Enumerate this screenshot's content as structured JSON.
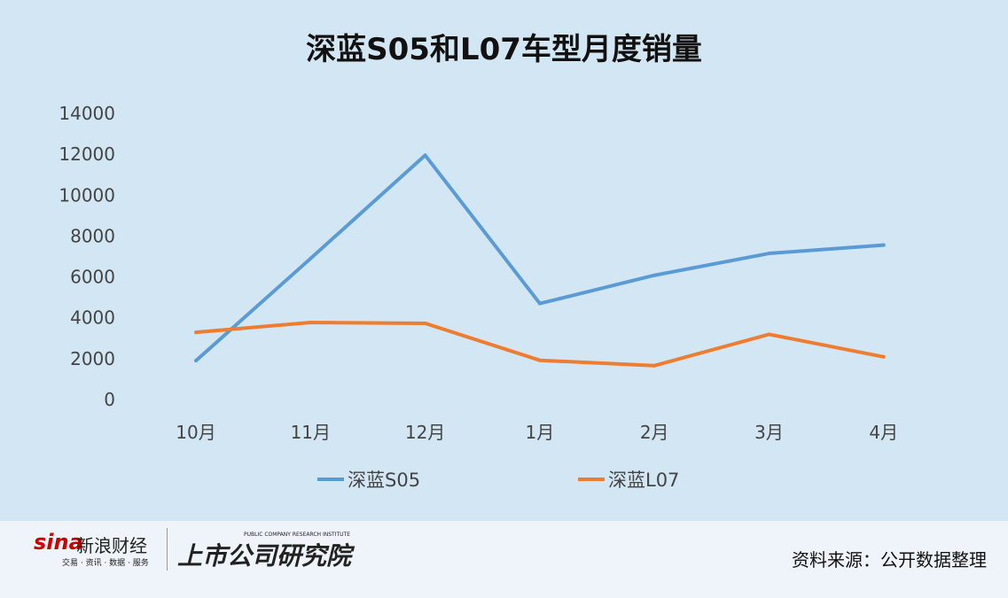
{
  "chart_data": {
    "type": "line",
    "title": "深蓝S05和L07车型月度销量",
    "categories": [
      "10月",
      "11月",
      "12月",
      "1月",
      "2月",
      "3月",
      "4月"
    ],
    "ylim": [
      0,
      14000
    ],
    "yticks": [
      0,
      2000,
      4000,
      6000,
      8000,
      10000,
      12000,
      14000
    ],
    "grid": false,
    "legend": "bottom",
    "series": [
      {
        "name": "深蓝S05",
        "color": "#5b9bd5",
        "values": [
          1900,
          6900,
          11950,
          4700,
          6080,
          7150,
          7560
        ]
      },
      {
        "name": "深蓝L07",
        "color": "#ed7d31",
        "values": [
          3290,
          3770,
          3730,
          1920,
          1660,
          3190,
          2090
        ]
      }
    ]
  },
  "footer": {
    "sina_logo": "sina",
    "sina_name": "新浪财经",
    "sina_tagline": "交易 · 资讯 · 数据 · 服务",
    "institute_name": "上市公司研究院",
    "institute_en": "PUBLIC COMPANY RESEARCH INSTITUTE",
    "source": "资料来源：公开数据整理"
  }
}
